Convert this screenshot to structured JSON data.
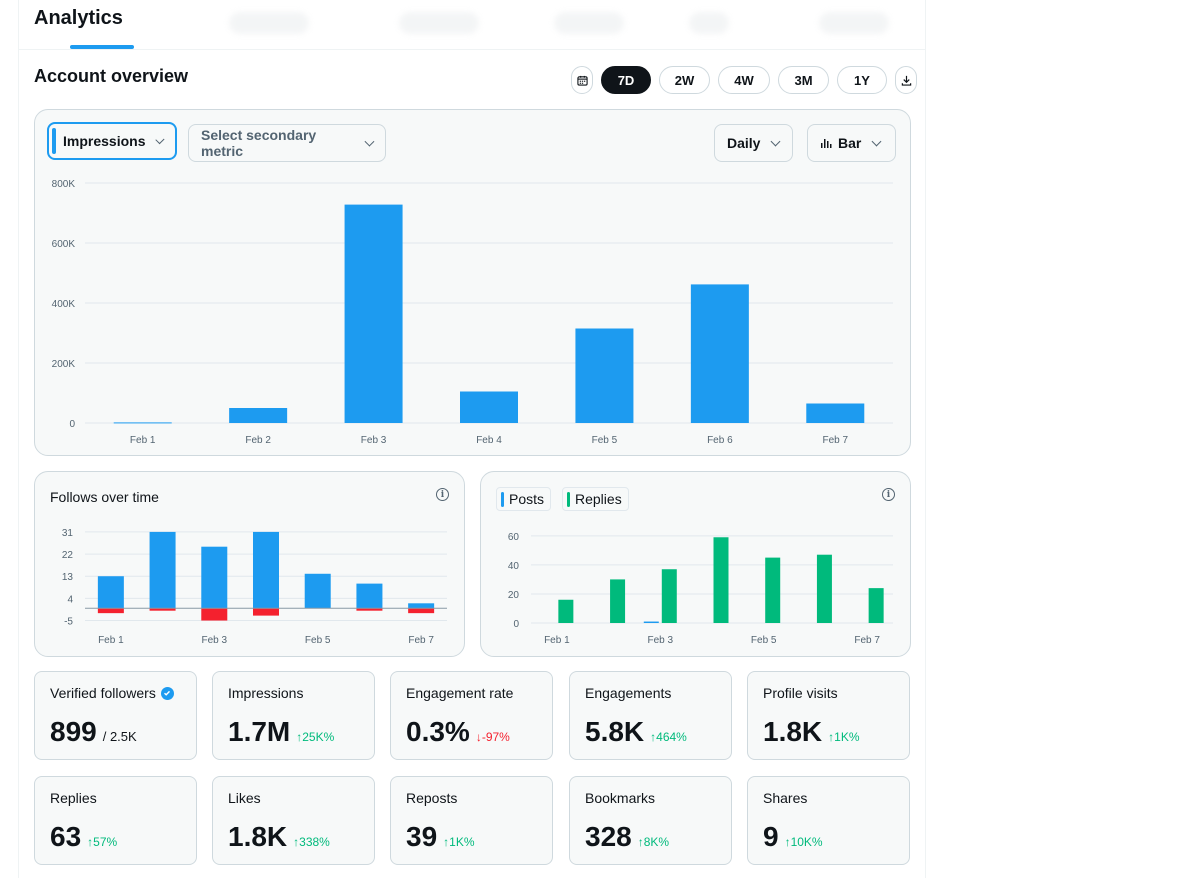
{
  "header": {
    "title": "Analytics"
  },
  "overview": {
    "title": "Account overview",
    "ranges": [
      "7D",
      "2W",
      "4W",
      "3M",
      "1Y"
    ],
    "active_range": "7D"
  },
  "main_chart": {
    "primary_metric": "Impressions",
    "secondary_placeholder": "Select secondary metric",
    "interval": "Daily",
    "chart_type_label": "Bar"
  },
  "follows_chart": {
    "title": "Follows over time"
  },
  "posts_chart": {
    "legend": [
      "Posts",
      "Replies"
    ]
  },
  "colors": {
    "accent": "#1d9bf0",
    "green": "#00ba7c",
    "red": "#f4212e",
    "posts": "#1d9bf0",
    "replies": "#00ba7c"
  },
  "stats": [
    {
      "label": "Verified followers",
      "value": "899",
      "sub": "/ 2.5K",
      "delta": "",
      "verified": true
    },
    {
      "label": "Impressions",
      "value": "1.7M",
      "delta": "↑25K%",
      "dir": "up"
    },
    {
      "label": "Engagement rate",
      "value": "0.3%",
      "delta": "↓-97%",
      "dir": "down"
    },
    {
      "label": "Engagements",
      "value": "5.8K",
      "delta": "↑464%",
      "dir": "up"
    },
    {
      "label": "Profile visits",
      "value": "1.8K",
      "delta": "↑1K%",
      "dir": "up"
    },
    {
      "label": "Replies",
      "value": "63",
      "delta": "↑57%",
      "dir": "up"
    },
    {
      "label": "Likes",
      "value": "1.8K",
      "delta": "↑338%",
      "dir": "up"
    },
    {
      "label": "Reposts",
      "value": "39",
      "delta": "↑1K%",
      "dir": "up"
    },
    {
      "label": "Bookmarks",
      "value": "328",
      "delta": "↑8K%",
      "dir": "up"
    },
    {
      "label": "Shares",
      "value": "9",
      "delta": "↑10K%",
      "dir": "up"
    }
  ],
  "chart_data": [
    {
      "type": "bar",
      "categories": [
        "Feb 1",
        "Feb 2",
        "Feb 3",
        "Feb 4",
        "Feb 5",
        "Feb 6",
        "Feb 7"
      ],
      "values": [
        2000,
        50000,
        728000,
        105000,
        315000,
        462000,
        65000
      ],
      "yticks": [
        0,
        200000,
        400000,
        600000,
        800000
      ],
      "ytick_labels": [
        "0",
        "200K",
        "400K",
        "600K",
        "800K"
      ],
      "ylim": [
        0,
        800000
      ],
      "grid": true
    },
    {
      "type": "bar",
      "categories": [
        "Feb 1",
        "Feb 2",
        "Feb 3",
        "Feb 4",
        "Feb 5",
        "Feb 6",
        "Feb 7"
      ],
      "xtick_labels": [
        "Feb 1",
        "Feb 3",
        "Feb 5",
        "Feb 7"
      ],
      "series": [
        {
          "values": [
            13,
            31,
            25,
            31,
            14,
            10,
            2
          ]
        },
        {
          "values": [
            -2,
            -1,
            -5,
            -3,
            0,
            -1,
            -2
          ]
        }
      ],
      "yticks": [
        -5,
        4,
        13,
        22,
        31
      ],
      "ylim": [
        -6,
        33
      ],
      "grid": true
    },
    {
      "type": "bar",
      "categories": [
        "Feb 1",
        "Feb 2",
        "Feb 3",
        "Feb 4",
        "Feb 5",
        "Feb 6",
        "Feb 7"
      ],
      "xtick_labels": [
        "Feb 1",
        "Feb 3",
        "Feb 5",
        "Feb 7"
      ],
      "series": [
        {
          "name": "Posts",
          "values": [
            0,
            0,
            1,
            0,
            0,
            0,
            0
          ]
        },
        {
          "name": "Replies",
          "values": [
            16,
            30,
            37,
            59,
            45,
            47,
            24
          ]
        }
      ],
      "yticks": [
        0,
        20,
        40,
        60
      ],
      "ylim": [
        0,
        64
      ],
      "grid": true
    }
  ]
}
